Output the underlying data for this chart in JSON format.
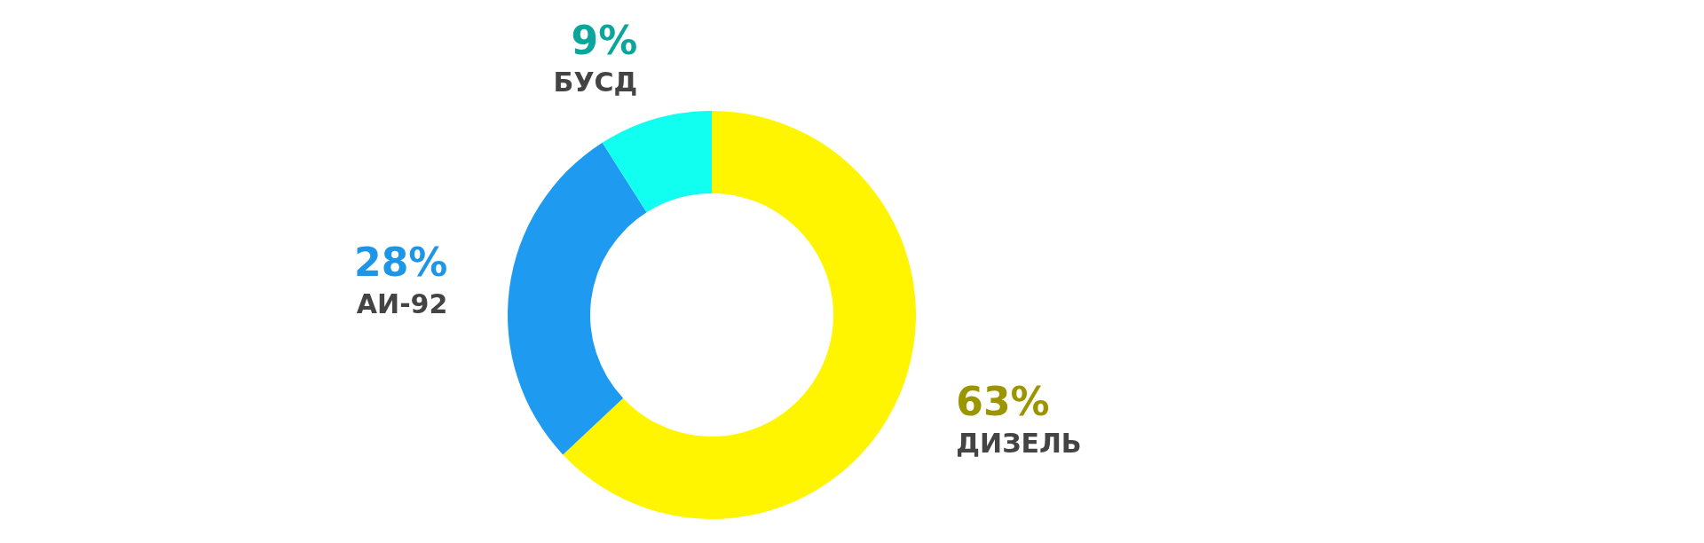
{
  "chart_data": {
    "type": "donut",
    "categories": [
      "ДИЗЕЛЬ",
      "АИ-92",
      "БУСД"
    ],
    "values": [
      63,
      28,
      9
    ],
    "colors": [
      "#fff500",
      "#1e9bf0",
      "#10fff0"
    ],
    "value_labels": [
      "63%",
      "28%",
      "9%"
    ]
  }
}
